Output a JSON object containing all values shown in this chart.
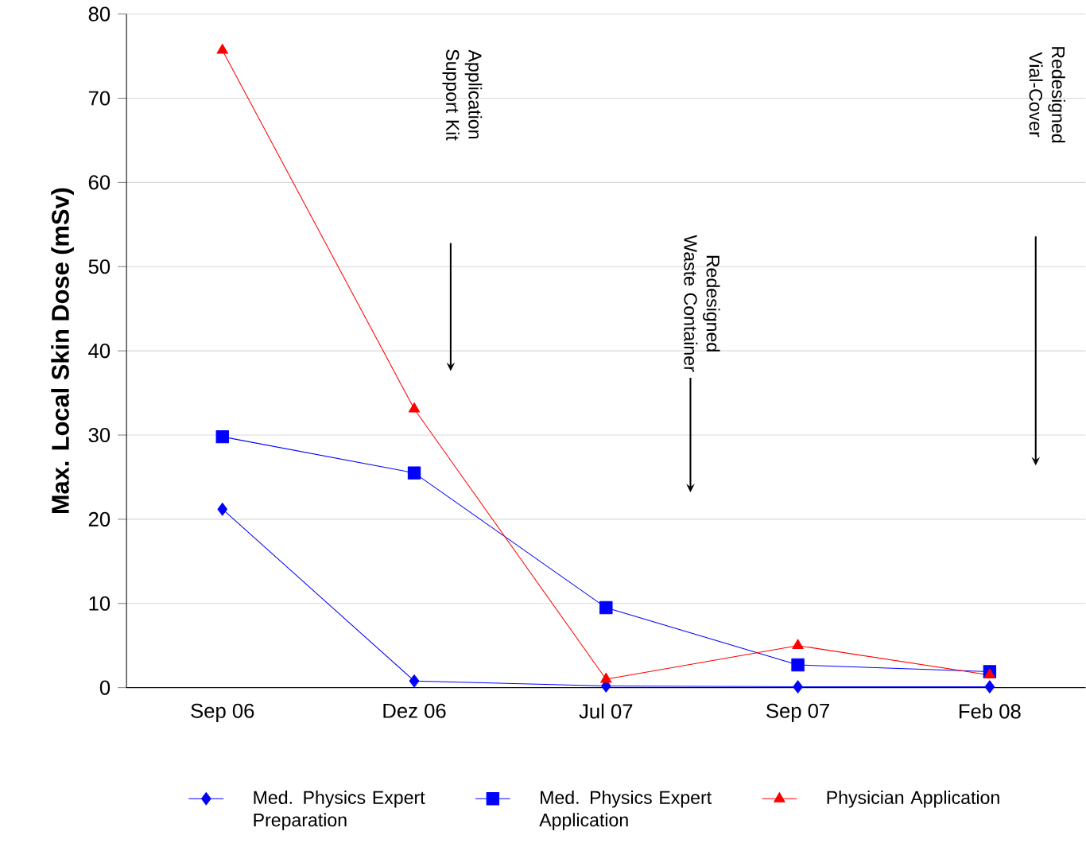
{
  "chart_data": {
    "type": "line",
    "ylabel": "Max. Local Skin Dose (mSv)",
    "categories": [
      "Sep 06",
      "Dez 06",
      "Jul 07",
      "Sep 07",
      "Feb 08"
    ],
    "series": [
      {
        "name": "Med. Physics Expert Preparation",
        "color": "#0000ff",
        "marker": "diamond",
        "values": [
          21.2,
          0.8,
          0.2,
          0.1,
          0.1
        ]
      },
      {
        "name": "Med. Physics Expert Application",
        "color": "#0000ff",
        "marker": "square",
        "values": [
          29.8,
          25.5,
          9.5,
          2.7,
          1.9
        ]
      },
      {
        "name": "Physician Application",
        "color": "#ff0000",
        "marker": "triangle",
        "values": [
          75.7,
          33.1,
          1.0,
          5.0,
          1.5
        ]
      }
    ],
    "ylim": [
      0,
      80
    ],
    "yticks": [
      0,
      10,
      20,
      30,
      40,
      50,
      60,
      70,
      80
    ],
    "grid": "y",
    "legend": "bottom",
    "annotations": [
      "Application Support Kit",
      "Redesigned Waste Container",
      "Redesigned Vial-Cover"
    ]
  }
}
